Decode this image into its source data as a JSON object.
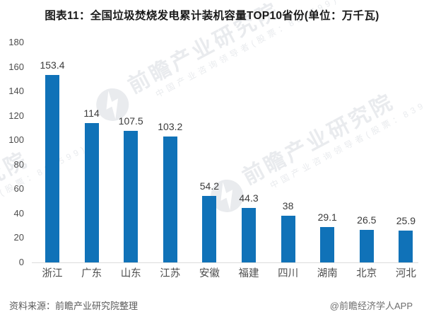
{
  "title": "图表11：全国垃圾焚烧发电累计装机容量TOP10省份(单位：万千瓦)",
  "chart_data": {
    "type": "bar",
    "title": "图表11：全国垃圾焚烧发电累计装机容量TOP10省份(单位：万千瓦)",
    "categories": [
      "浙江",
      "广东",
      "山东",
      "江苏",
      "安徽",
      "福建",
      "四川",
      "湖南",
      "北京",
      "河北"
    ],
    "values": [
      153.4,
      114,
      107.5,
      103.2,
      54.2,
      44.3,
      38,
      29.1,
      26.5,
      25.9
    ],
    "value_labels": [
      "153.4",
      "114",
      "107.5",
      "103.2",
      "54.2",
      "44.3",
      "38",
      "29.1",
      "26.5",
      "25.9"
    ],
    "xlabel": "",
    "ylabel": "",
    "unit": "万千瓦",
    "ylim": [
      0,
      180
    ],
    "ytick_step": 20,
    "grid": false,
    "legend": false,
    "bar_color": "#1072B8"
  },
  "colors": {
    "bar": "#1072B8",
    "axis_line": "#DCDCDC",
    "watermark": "#E9EBEE",
    "title_text": "#1A1A1A",
    "label_text": "#4D4D4D"
  },
  "watermark": {
    "brand": "前瞻产业研究院",
    "tagline": "中国产业咨询领导者(股票：839599)"
  },
  "footer": {
    "source": "资料来源：前瞻产业研究院整理",
    "credit": "@前瞻经济学人APP"
  }
}
